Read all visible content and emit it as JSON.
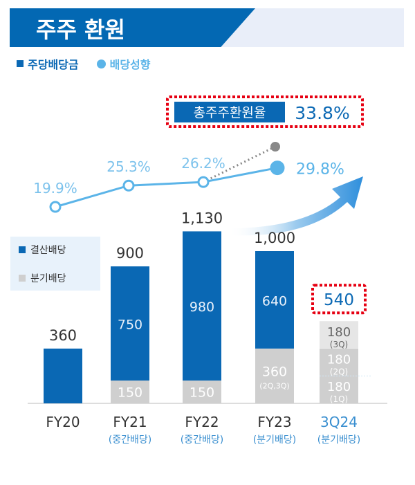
{
  "header": {
    "title": "주주 환원"
  },
  "legend": {
    "dps": "주당배당금",
    "payout": "배당성향"
  },
  "colors": {
    "dps": "#0a68b4",
    "quarterly": "#cfcfcf",
    "quarterly_light": "#e6e6e6",
    "payout": "#5bb4e8",
    "highlight": "#e60012",
    "gray": "#888888"
  },
  "chart_data": {
    "type": "bar+line",
    "categories": [
      "FY20",
      "FY21",
      "FY22",
      "FY23",
      "3Q24"
    ],
    "sublabels": [
      "",
      "(중간배당)",
      "(중간배당)",
      "(분기배당)",
      "(분기배당)"
    ],
    "series": [
      {
        "name": "결산배당",
        "values": [
          360,
          750,
          980,
          640,
          0
        ]
      },
      {
        "name": "분기배당",
        "values": [
          0,
          150,
          150,
          360,
          540
        ]
      }
    ],
    "quarter_breakdown_3Q24": [
      {
        "value": 180,
        "label": "(1Q)"
      },
      {
        "value": 180,
        "label": "(2Q)"
      },
      {
        "value": 180,
        "label": "(3Q)"
      }
    ],
    "segment_labels": [
      "360",
      "750",
      "980",
      "640",
      "150",
      "150",
      "360",
      "(2Q,3Q)"
    ],
    "totals": [
      "360",
      "900",
      "1,130",
      "1,000",
      "540"
    ],
    "payout_ratio": {
      "name": "배당성향",
      "values": [
        19.9,
        25.3,
        26.2,
        29.8
      ],
      "labels": [
        "19.9%",
        "25.3%",
        "26.2%",
        "29.8%"
      ]
    },
    "total_return": {
      "label": "총주주환원율",
      "value": 33.8,
      "text": "33.8%"
    },
    "bar_legend": [
      "결산배당",
      "분기배당"
    ]
  }
}
